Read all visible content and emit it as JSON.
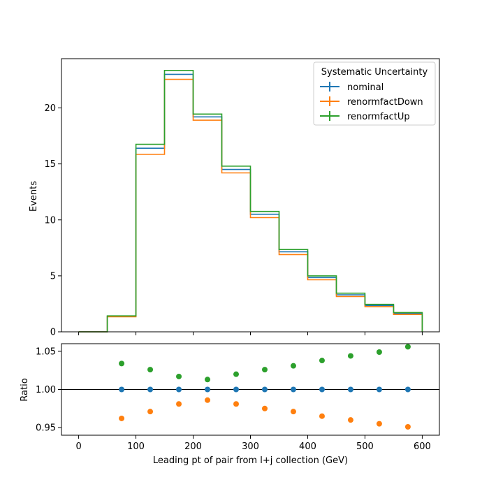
{
  "chart_data": {
    "type": "step",
    "xlabel": "Leading pt of pair from l+j collection (GeV)",
    "bin_edges": [
      0,
      50,
      100,
      150,
      200,
      250,
      300,
      350,
      400,
      450,
      500,
      550,
      600
    ],
    "colors": {
      "nominal": "#1f77b4",
      "renormfactDown": "#ff7f0e",
      "renormfactUp": "#2ca02c"
    },
    "legend": {
      "title": "Systematic Uncertainty",
      "placement": "top-right"
    },
    "top_panel": {
      "ylabel": "Events",
      "ylim": [
        0,
        24.4
      ],
      "yticks": [
        0,
        5,
        10,
        15,
        20
      ],
      "series": [
        {
          "name": "nominal",
          "values": [
            0,
            1.4,
            16.4,
            23.0,
            19.2,
            14.5,
            10.5,
            7.15,
            4.85,
            3.3,
            2.35,
            1.65
          ]
        },
        {
          "name": "renormfactDown",
          "values": [
            0,
            1.35,
            15.85,
            22.55,
            18.9,
            14.2,
            10.2,
            6.9,
            4.65,
            3.15,
            2.25,
            1.55
          ]
        },
        {
          "name": "renormfactUp",
          "values": [
            0,
            1.42,
            16.75,
            23.35,
            19.45,
            14.8,
            10.75,
            7.35,
            5.0,
            3.45,
            2.45,
            1.72
          ]
        }
      ]
    },
    "ratio_panel": {
      "ylabel": "Ratio",
      "ylim": [
        0.94,
        1.06
      ],
      "yticks": [
        0.95,
        1.0,
        1.05
      ],
      "ytick_labels": [
        "0.95",
        "1.00",
        "1.05"
      ],
      "reference_line": 1.0,
      "x": [
        75,
        125,
        175,
        225,
        275,
        325,
        375,
        425,
        475,
        525,
        575
      ],
      "series": [
        {
          "name": "nominal",
          "values": [
            1.0,
            1.0,
            1.0,
            1.0,
            1.0,
            1.0,
            1.0,
            1.0,
            1.0,
            1.0,
            1.0
          ]
        },
        {
          "name": "renormfactDown",
          "values": [
            0.962,
            0.971,
            0.981,
            0.986,
            0.981,
            0.975,
            0.971,
            0.965,
            0.96,
            0.955,
            0.951
          ]
        },
        {
          "name": "renormfactUp",
          "values": [
            1.034,
            1.026,
            1.017,
            1.013,
            1.02,
            1.026,
            1.031,
            1.038,
            1.044,
            1.049,
            1.056
          ]
        }
      ]
    },
    "xlim": [
      -30,
      630
    ],
    "xticks": [
      0,
      100,
      200,
      300,
      400,
      500,
      600
    ]
  }
}
